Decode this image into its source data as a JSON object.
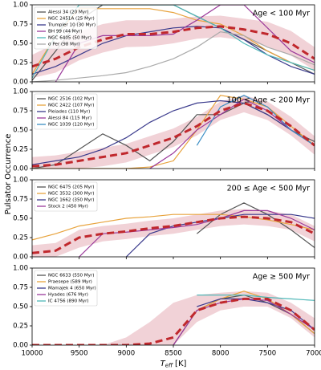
{
  "ylabel": "Pulsator Occurrence",
  "chart_data": [
    {
      "type": "line",
      "title": "Age < 100 Myr",
      "x": [
        10000,
        9750,
        9500,
        9250,
        9000,
        8750,
        8500,
        8250,
        8000,
        7750,
        7500,
        7250,
        7000
      ],
      "xlim": [
        10000,
        7000
      ],
      "xticks": [
        10000,
        9500,
        9000,
        8500,
        8000,
        7500,
        7000
      ],
      "ylim": [
        0,
        1
      ],
      "yticks": [
        {
          "value": 0,
          "label": "0.00"
        },
        {
          "value": 0.25,
          "label": "0.25"
        },
        {
          "value": 0.5,
          "label": "0.50"
        },
        {
          "value": 0.75,
          "label": "0.75"
        },
        {
          "value": 1,
          "label": "1.00"
        }
      ],
      "legend": "upper left",
      "series": [
        {
          "name": "Alessi 34 (20 Myr)",
          "color": "#555555",
          "values": [
            0.02,
            0.4,
            0.8,
            1.0,
            1.0,
            1.0,
            1.0,
            0.85,
            0.7,
            0.55,
            0.4,
            0.25,
            0.1
          ]
        },
        {
          "name": "NGC 2451A (25 Myr)",
          "color": "#e8a33d",
          "values": [
            0.1,
            0.6,
            0.95,
            0.95,
            0.95,
            0.95,
            0.9,
            0.8,
            0.75,
            0.6,
            0.4,
            0.25,
            0.15
          ]
        },
        {
          "name": "Trumpler 10 (30 Myr)",
          "color": "#3a3a8c",
          "values": [
            0.1,
            0.2,
            0.35,
            0.5,
            0.6,
            0.65,
            0.7,
            0.72,
            0.7,
            0.55,
            0.35,
            0.2,
            0.1
          ]
        },
        {
          "name": "BH 99 (44 Myr)",
          "color": "#9b3a9b",
          "values": [
            null,
            0,
            0.5,
            0.6,
            0.6,
            0.6,
            0.62,
            0.8,
            1.0,
            1.0,
            0.7,
            0.4,
            0.25
          ]
        },
        {
          "name": "NGC 6405 (50 Myr)",
          "color": "#4fb8b8",
          "values": [
            0.05,
            0.6,
            1.0,
            1.0,
            1.0,
            1.0,
            1.0,
            0.85,
            0.7,
            0.5,
            0.35,
            0.25,
            0.15
          ]
        },
        {
          "name": "σ Per (98 Myr)",
          "color": "#aaaaaa",
          "values": [
            0.0,
            0.02,
            0.05,
            0.08,
            0.12,
            0.2,
            0.3,
            0.45,
            0.65,
            0.6,
            0.45,
            0.35,
            0.22
          ]
        }
      ],
      "mean": {
        "color": "#c0282d",
        "values": [
          0.2,
          0.3,
          0.45,
          0.55,
          0.62,
          0.62,
          0.65,
          0.7,
          0.72,
          0.68,
          0.62,
          0.5,
          0.3
        ]
      },
      "band": {
        "color": "#e8b4bd",
        "lower": [
          0.05,
          0.12,
          0.28,
          0.38,
          0.45,
          0.46,
          0.5,
          0.56,
          0.58,
          0.54,
          0.46,
          0.34,
          0.15
        ],
        "upper": [
          0.35,
          0.5,
          0.65,
          0.75,
          0.8,
          0.8,
          0.82,
          0.85,
          0.86,
          0.82,
          0.78,
          0.66,
          0.45
        ]
      }
    },
    {
      "type": "line",
      "title": "100 ≤ Age < 200 Myr",
      "x": [
        10000,
        9750,
        9500,
        9250,
        9000,
        8750,
        8500,
        8250,
        8000,
        7750,
        7500,
        7250,
        7000
      ],
      "xlim": [
        10000,
        7000
      ],
      "xticks": [
        10000,
        9500,
        9000,
        8500,
        8000,
        7500,
        7000
      ],
      "ylim": [
        0,
        1
      ],
      "yticks": [
        {
          "value": 0,
          "label": "0.00"
        },
        {
          "value": 0.25,
          "label": "0.25"
        },
        {
          "value": 0.5,
          "label": "0.50"
        },
        {
          "value": 0.75,
          "label": "0.75"
        },
        {
          "value": 1,
          "label": "1.00"
        }
      ],
      "legend": "upper left",
      "series": [
        {
          "name": "NGC 2516 (102 Myr)",
          "color": "#555555",
          "values": [
            0,
            0.05,
            0.25,
            0.45,
            0.3,
            0.1,
            0.35,
            0.7,
            0.7,
            0.85,
            0.7,
            0.5,
            0.35
          ]
        },
        {
          "name": "NGC 2422 (107 Myr)",
          "color": "#e8a33d",
          "values": [
            0,
            0,
            0,
            0,
            0,
            0.02,
            0.1,
            0.5,
            0.95,
            0.9,
            0.8,
            0.55,
            0.3
          ]
        },
        {
          "name": "Pleiades (110 Myr)",
          "color": "#3a3a8c",
          "values": [
            0.05,
            0.1,
            0.15,
            0.25,
            0.4,
            0.6,
            0.75,
            0.85,
            0.88,
            0.85,
            0.7,
            0.5,
            0.3
          ]
        },
        {
          "name": "Alessi 84 (115 Myr)",
          "color": "#9b3a9b",
          "values": [
            null,
            null,
            null,
            null,
            null,
            0,
            0.2,
            0.5,
            0.7,
            0.9,
            0.75,
            0.5,
            0.3
          ]
        },
        {
          "name": "NGC 1039 (120 Myr)",
          "color": "#3b8ec4",
          "values": [
            null,
            null,
            null,
            null,
            null,
            null,
            null,
            0.3,
            0.8,
            0.95,
            0.8,
            0.5,
            0.3
          ]
        }
      ],
      "mean": {
        "color": "#c0282d",
        "values": [
          0.03,
          0.05,
          0.1,
          0.15,
          0.2,
          0.3,
          0.4,
          0.55,
          0.75,
          0.85,
          0.75,
          0.55,
          0.3
        ]
      },
      "band": {
        "color": "#e8b4bd",
        "lower": [
          0,
          0,
          0,
          0.03,
          0.08,
          0.18,
          0.28,
          0.43,
          0.63,
          0.73,
          0.63,
          0.43,
          0.18
        ],
        "upper": [
          0.15,
          0.17,
          0.22,
          0.27,
          0.32,
          0.42,
          0.52,
          0.67,
          0.87,
          0.95,
          0.87,
          0.67,
          0.42
        ]
      }
    },
    {
      "type": "line",
      "title": "200 ≤ Age < 500 Myr",
      "x": [
        10000,
        9750,
        9500,
        9250,
        9000,
        8750,
        8500,
        8250,
        8000,
        7750,
        7500,
        7250,
        7000
      ],
      "xlim": [
        10000,
        7000
      ],
      "xticks": [
        10000,
        9500,
        9000,
        8500,
        8000,
        7500,
        7000
      ],
      "ylim": [
        0,
        1
      ],
      "yticks": [
        {
          "value": 0,
          "label": "0.00"
        },
        {
          "value": 0.25,
          "label": "0.25"
        },
        {
          "value": 0.5,
          "label": "0.50"
        },
        {
          "value": 0.75,
          "label": "0.75"
        },
        {
          "value": 1,
          "label": "1.00"
        }
      ],
      "legend": "upper left",
      "series": [
        {
          "name": "NGC 6475 (205 Myr)",
          "color": "#555555",
          "values": [
            null,
            null,
            null,
            null,
            null,
            null,
            null,
            0.3,
            0.55,
            0.7,
            0.55,
            0.35,
            0.12
          ]
        },
        {
          "name": "NGC 3532 (300 Myr)",
          "color": "#e8a33d",
          "values": [
            0.22,
            0.3,
            0.4,
            0.45,
            0.5,
            0.52,
            0.55,
            0.55,
            0.55,
            0.52,
            0.48,
            0.42,
            0.35
          ]
        },
        {
          "name": "NGC 1662 (350 Myr)",
          "color": "#3a3a8c",
          "values": [
            null,
            null,
            null,
            null,
            0,
            0.3,
            0.4,
            0.45,
            0.5,
            0.55,
            0.55,
            0.55,
            0.5
          ]
        },
        {
          "name": "Stock 2 (450 Myr)",
          "color": "#9b3a9b",
          "values": [
            null,
            null,
            0,
            0.3,
            0.32,
            0.35,
            0.38,
            0.42,
            0.5,
            0.6,
            0.6,
            0.5,
            0.35
          ]
        }
      ],
      "mean": {
        "color": "#c0282d",
        "values": [
          0.05,
          0.08,
          0.25,
          0.3,
          0.33,
          0.37,
          0.4,
          0.45,
          0.5,
          0.52,
          0.5,
          0.45,
          0.3
        ]
      },
      "band": {
        "color": "#e8b4bd",
        "lower": [
          0,
          0,
          0.12,
          0.2,
          0.23,
          0.27,
          0.3,
          0.35,
          0.4,
          0.42,
          0.4,
          0.35,
          0.2
        ],
        "upper": [
          0.15,
          0.18,
          0.35,
          0.4,
          0.43,
          0.47,
          0.5,
          0.55,
          0.6,
          0.62,
          0.6,
          0.55,
          0.4
        ]
      }
    },
    {
      "type": "line",
      "title": "Age ≥ 500 Myr",
      "xlabel": [
        "T",
        "eff",
        "[K]"
      ],
      "x": [
        10000,
        9750,
        9500,
        9250,
        9000,
        8750,
        8500,
        8250,
        8000,
        7750,
        7500,
        7250,
        7000
      ],
      "xlim": [
        10000,
        7000
      ],
      "xticks": [
        10000,
        9500,
        9000,
        8500,
        8000,
        7500,
        7000
      ],
      "ylim": [
        0,
        1
      ],
      "yticks": [
        {
          "value": 0,
          "label": "0.00"
        },
        {
          "value": 0.25,
          "label": "0.25"
        },
        {
          "value": 0.5,
          "label": "0.50"
        },
        {
          "value": 0.75,
          "label": "0.75"
        },
        {
          "value": 1,
          "label": "1.00"
        }
      ],
      "legend": "upper left",
      "series": [
        {
          "name": "NGC 6633 (550 Myr)",
          "color": "#555555",
          "values": [
            null,
            null,
            null,
            null,
            null,
            null,
            0,
            0.45,
            0.6,
            0.65,
            0.55,
            0.4,
            0.15
          ]
        },
        {
          "name": "Praesepe (589 Myr)",
          "color": "#e8a33d",
          "values": [
            null,
            null,
            null,
            null,
            null,
            null,
            null,
            0.45,
            0.6,
            0.7,
            0.6,
            0.4,
            0.15
          ]
        },
        {
          "name": "Mamajek 4 (650 Myr)",
          "color": "#3a3a8c",
          "values": [
            null,
            null,
            null,
            null,
            null,
            null,
            null,
            0.5,
            0.6,
            0.6,
            0.55,
            0.45,
            0.2
          ]
        },
        {
          "name": "Hyades (676 Myr)",
          "color": "#9b3a9b",
          "values": [
            null,
            null,
            null,
            null,
            null,
            null,
            0,
            0.45,
            0.55,
            0.6,
            0.58,
            0.4,
            0.2
          ]
        },
        {
          "name": "IC 4756 (890 Myr)",
          "color": "#4fb8b8",
          "values": [
            null,
            null,
            null,
            null,
            null,
            null,
            null,
            0.65,
            0.65,
            0.65,
            0.62,
            0.6,
            0.58
          ]
        }
      ],
      "mean": {
        "color": "#c0282d",
        "values": [
          0,
          0,
          0,
          0,
          0,
          0.02,
          0.1,
          0.45,
          0.55,
          0.6,
          0.6,
          0.45,
          0.2
        ]
      },
      "band": {
        "color": "#e8b4bd",
        "lower": [
          0,
          0,
          0,
          0,
          0,
          0,
          0,
          0.3,
          0.45,
          0.5,
          0.5,
          0.35,
          0.1
        ],
        "upper": [
          0,
          0,
          0,
          0,
          0.1,
          0.3,
          0.55,
          0.65,
          0.68,
          0.7,
          0.68,
          0.55,
          0.35
        ]
      }
    }
  ]
}
